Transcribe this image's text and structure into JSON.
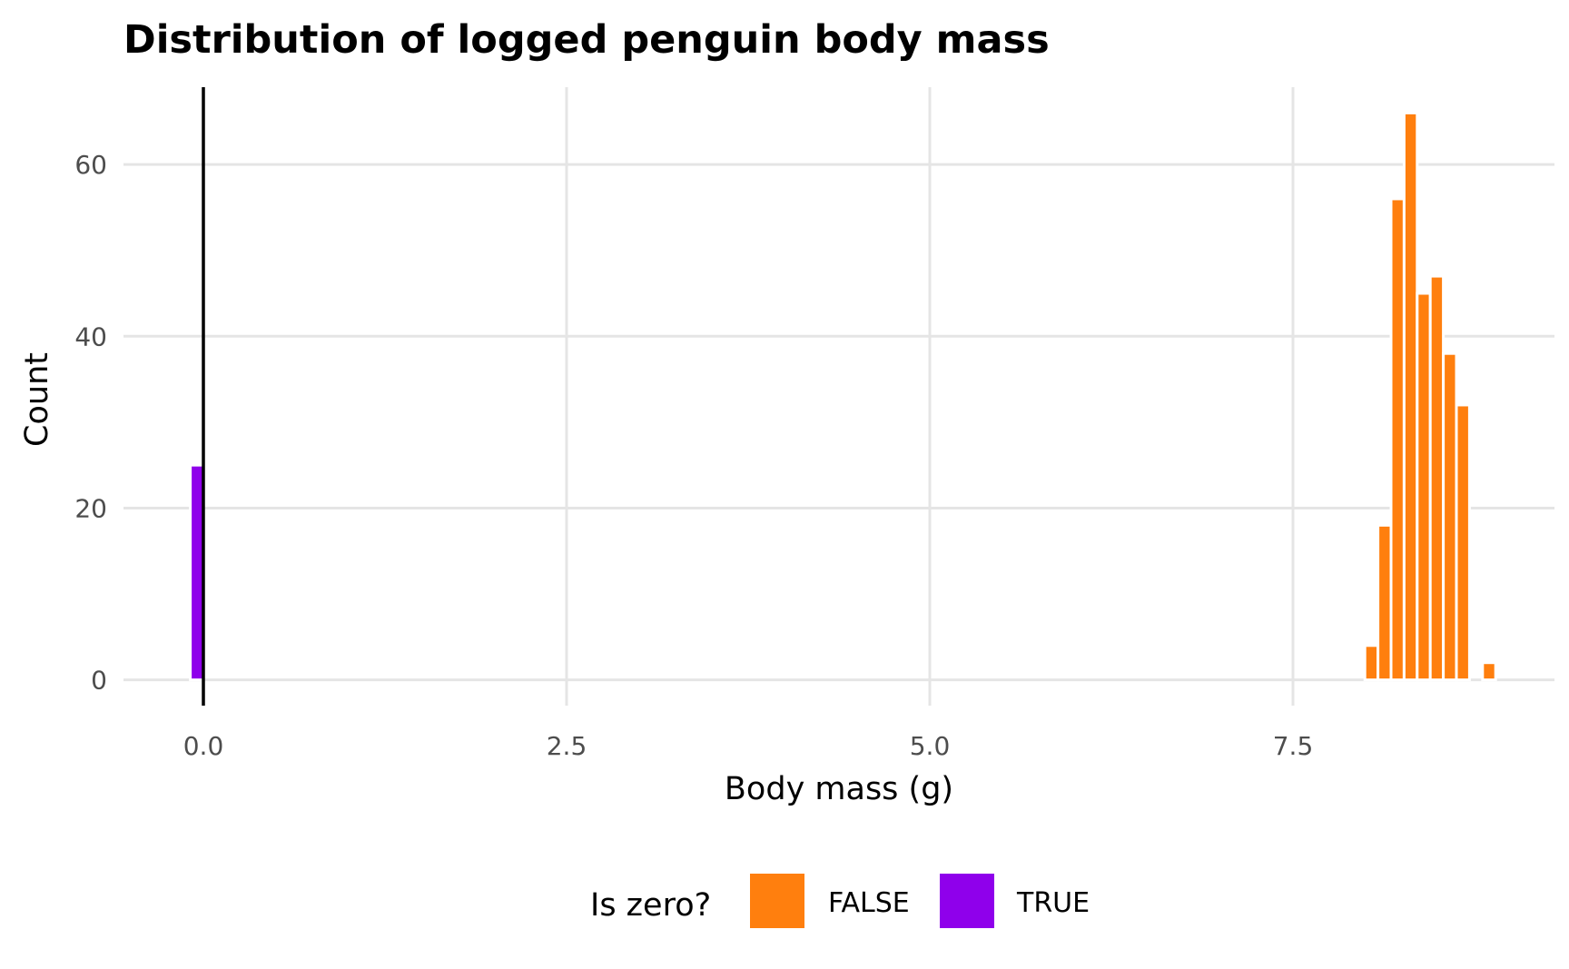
{
  "chart_data": {
    "type": "bar",
    "title": "Distribution of logged penguin body mass",
    "xlabel": "Body mass (g)",
    "ylabel": "Count",
    "xlim": [
      -0.55,
      9.3
    ],
    "ylim": [
      -3,
      69
    ],
    "x_ticks": [
      0.0,
      2.5,
      5.0,
      7.5
    ],
    "x_tick_labels": [
      "0.0",
      "2.5",
      "5.0",
      "7.5"
    ],
    "y_ticks": [
      0,
      20,
      40,
      60
    ],
    "y_tick_labels": [
      "0",
      "20",
      "40",
      "60"
    ],
    "bin_width": 0.09,
    "grid": true,
    "reference_line": {
      "x": 0,
      "color": "#000000"
    },
    "legend": {
      "title": "Is zero?",
      "position": "bottom"
    },
    "series": [
      {
        "name": "FALSE",
        "color": "#FF7F0E",
        "bins": [
          {
            "x": 8.04,
            "count": 4
          },
          {
            "x": 8.13,
            "count": 18
          },
          {
            "x": 8.22,
            "count": 56
          },
          {
            "x": 8.31,
            "count": 66
          },
          {
            "x": 8.4,
            "count": 45
          },
          {
            "x": 8.49,
            "count": 47
          },
          {
            "x": 8.58,
            "count": 38
          },
          {
            "x": 8.67,
            "count": 32
          },
          {
            "x": 8.76,
            "count": 0
          },
          {
            "x": 8.85,
            "count": 2
          }
        ]
      },
      {
        "name": "TRUE",
        "color": "#8F00EB",
        "bins": [
          {
            "x": -0.045,
            "count": 25
          }
        ]
      }
    ]
  }
}
